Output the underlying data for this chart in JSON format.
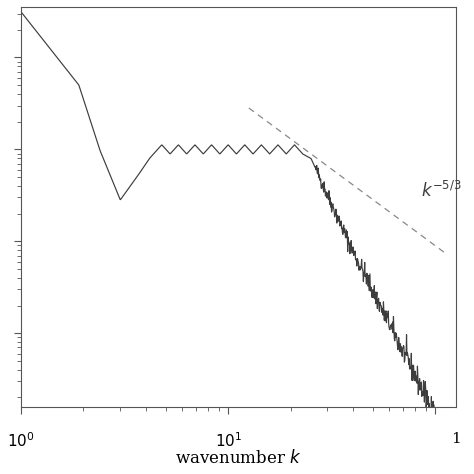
{
  "xlabel": "wavenumber $k$",
  "ref_slope": -1.6667,
  "ref_label": "$k^{-5/3}$",
  "line_color": "#3d3d3d",
  "dashed_color": "#888888",
  "bg_color": "#ffffff",
  "seed": 42,
  "xlim": [
    1.0,
    125.0
  ],
  "ylim_log": [
    -3.8,
    0.55
  ]
}
